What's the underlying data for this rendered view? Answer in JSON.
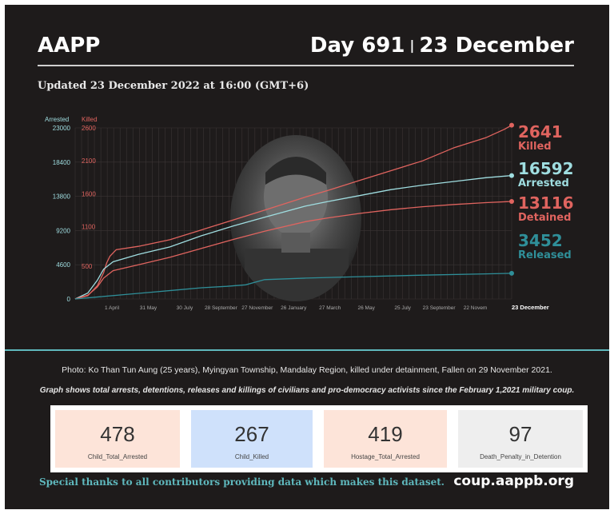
{
  "header": {
    "brand": "AAPP",
    "day": "Day 691",
    "separator": "|",
    "date": "23 December",
    "updated": "Updated 23 December 2022 at 16:00 (GMT+6)"
  },
  "chart_data": {
    "type": "line",
    "axis_titles": {
      "arrested": "Arrested",
      "killed": "Killed"
    },
    "y_left_ticks": [
      "23000",
      "18400",
      "13800",
      "9200",
      "4600",
      "0"
    ],
    "y_right_ticks": [
      "2600",
      "2100",
      "1600",
      "1100",
      "500"
    ],
    "y_left_lim": [
      0,
      23000
    ],
    "y_right_lim": [
      0,
      2600
    ],
    "x_ticks": [
      "1 April",
      "31 May",
      "30 July",
      "28 September",
      "27 November",
      "26 January",
      "27 March",
      "26 May",
      "25 July",
      "23 September",
      "22 Novem",
      "23 December"
    ],
    "grid": true,
    "series": [
      {
        "name": "Killed",
        "final": "2641",
        "color": "#e0645f",
        "axis": "right",
        "x": [
          0,
          20,
          35,
          45,
          50,
          55,
          65,
          100,
          150,
          200,
          250,
          300,
          365,
          400,
          450,
          500,
          550,
          600,
          650,
          680,
          691
        ],
        "values": [
          0,
          50,
          200,
          400,
          550,
          650,
          750,
          800,
          900,
          1050,
          1200,
          1350,
          1550,
          1650,
          1800,
          1950,
          2100,
          2300,
          2450,
          2580,
          2641
        ]
      },
      {
        "name": "Arrested",
        "final": "16592",
        "color": "#9fdde0",
        "axis": "left",
        "x": [
          0,
          20,
          35,
          45,
          60,
          100,
          150,
          200,
          250,
          300,
          365,
          400,
          450,
          500,
          550,
          600,
          650,
          691
        ],
        "values": [
          0,
          800,
          2500,
          4000,
          5000,
          6000,
          7000,
          8500,
          9800,
          11000,
          12500,
          13100,
          13900,
          14700,
          15300,
          15800,
          16300,
          16592
        ]
      },
      {
        "name": "Detained",
        "final": "13116",
        "color": "#e0645f",
        "axis": "left",
        "x": [
          0,
          20,
          35,
          45,
          60,
          100,
          150,
          200,
          250,
          300,
          365,
          400,
          450,
          500,
          550,
          600,
          650,
          691
        ],
        "values": [
          0,
          500,
          1600,
          2800,
          3800,
          4600,
          5600,
          6800,
          8000,
          9100,
          10400,
          10900,
          11500,
          12000,
          12400,
          12700,
          12950,
          13116
        ]
      },
      {
        "name": "Released",
        "final": "3452",
        "color": "#2f8f99",
        "axis": "left",
        "x": [
          0,
          40,
          80,
          120,
          160,
          200,
          240,
          270,
          300,
          365,
          450,
          550,
          650,
          691
        ],
        "values": [
          0,
          300,
          600,
          900,
          1200,
          1500,
          1700,
          1900,
          2600,
          2800,
          3000,
          3200,
          3380,
          3452
        ]
      }
    ],
    "photo_alt_icon": "portrait-photo"
  },
  "caption": "Photo: Ko Than Tun Aung (25 years), Myingyan Township, Mandalay Region, killed under detainment, Fallen on 29 November 2021.",
  "note": "Graph shows total arrests, detentions, releases and killings of civilians and pro-democracy activists since the February 1,2021 military coup.",
  "cards": [
    {
      "value": "478",
      "label": "Child_Total_Arrested",
      "color": "#fde4d9"
    },
    {
      "value": "267",
      "label": "Child_Killed",
      "color": "#cfe1fb"
    },
    {
      "value": "419",
      "label": "Hostage_Total_Arrested",
      "color": "#fde4d9"
    },
    {
      "value": "97",
      "label": "Death_Penalty_in_Detention",
      "color": "#eeeeee"
    }
  ],
  "footer": {
    "thanks": "Special thanks to all contributors providing data which makes this dataset.",
    "site": "coup.aappb.org"
  }
}
